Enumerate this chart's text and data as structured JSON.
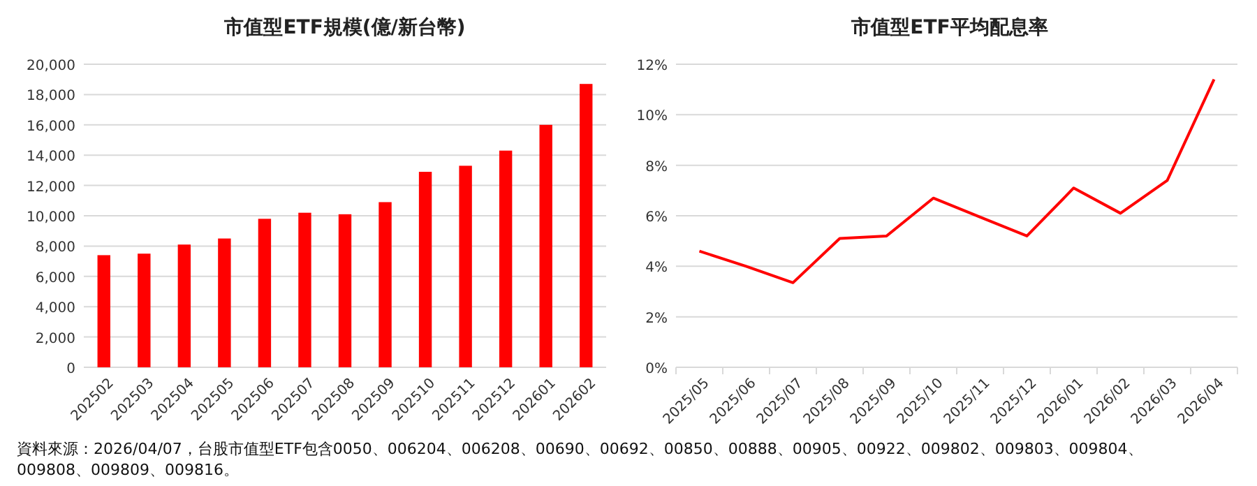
{
  "chart_data": [
    {
      "type": "bar",
      "title": "市值型ETF規模(億/新台幣)",
      "categories": [
        "202502",
        "202503",
        "202504",
        "202505",
        "202506",
        "202507",
        "202508",
        "202509",
        "202510",
        "202511",
        "202512",
        "202601",
        "202602"
      ],
      "values": [
        7400,
        7500,
        8100,
        8500,
        9800,
        10200,
        10100,
        10900,
        12900,
        13300,
        14300,
        16000,
        18700
      ],
      "color": "#ff0000",
      "ylim": [
        0,
        20000
      ],
      "yticks": [
        {
          "value": 0,
          "label": "0"
        },
        {
          "value": 2000,
          "label": "2,000"
        },
        {
          "value": 4000,
          "label": "4,000"
        },
        {
          "value": 6000,
          "label": "6,000"
        },
        {
          "value": 8000,
          "label": "8,000"
        },
        {
          "value": 10000,
          "label": "10,000"
        },
        {
          "value": 12000,
          "label": "12,000"
        },
        {
          "value": 14000,
          "label": "14,000"
        },
        {
          "value": 16000,
          "label": "16,000"
        },
        {
          "value": 18000,
          "label": "18,000"
        },
        {
          "value": 20000,
          "label": "20,000"
        }
      ],
      "grid": "y",
      "annotations": [
        "資料來源：2026/04/07，台股市值型ETF包含0050、006204、006208、00690、00692、00850、00888、00905、00922、009802、009803、009804、009808、009809、009816。"
      ]
    },
    {
      "type": "line",
      "title": "市值型ETF平均配息率",
      "categories": [
        "2025/05",
        "2025/06",
        "2025/07",
        "2025/08",
        "2025/09",
        "2025/10",
        "2025/11",
        "2025/12",
        "2026/01",
        "2026/02",
        "2026/03",
        "2026/04"
      ],
      "values": [
        4.6,
        4.0,
        3.35,
        5.1,
        5.2,
        6.7,
        5.95,
        5.2,
        7.1,
        6.1,
        7.4,
        11.4
      ],
      "color": "#ff0000",
      "ylim": [
        0,
        12
      ],
      "yticks": [
        {
          "value": 0,
          "label": "0%"
        },
        {
          "value": 2,
          "label": "2%"
        },
        {
          "value": 4,
          "label": "4%"
        },
        {
          "value": 6,
          "label": "6%"
        },
        {
          "value": 8,
          "label": "8%"
        },
        {
          "value": 10,
          "label": "10%"
        },
        {
          "value": 12,
          "label": "12%"
        }
      ],
      "grid": "y"
    }
  ]
}
